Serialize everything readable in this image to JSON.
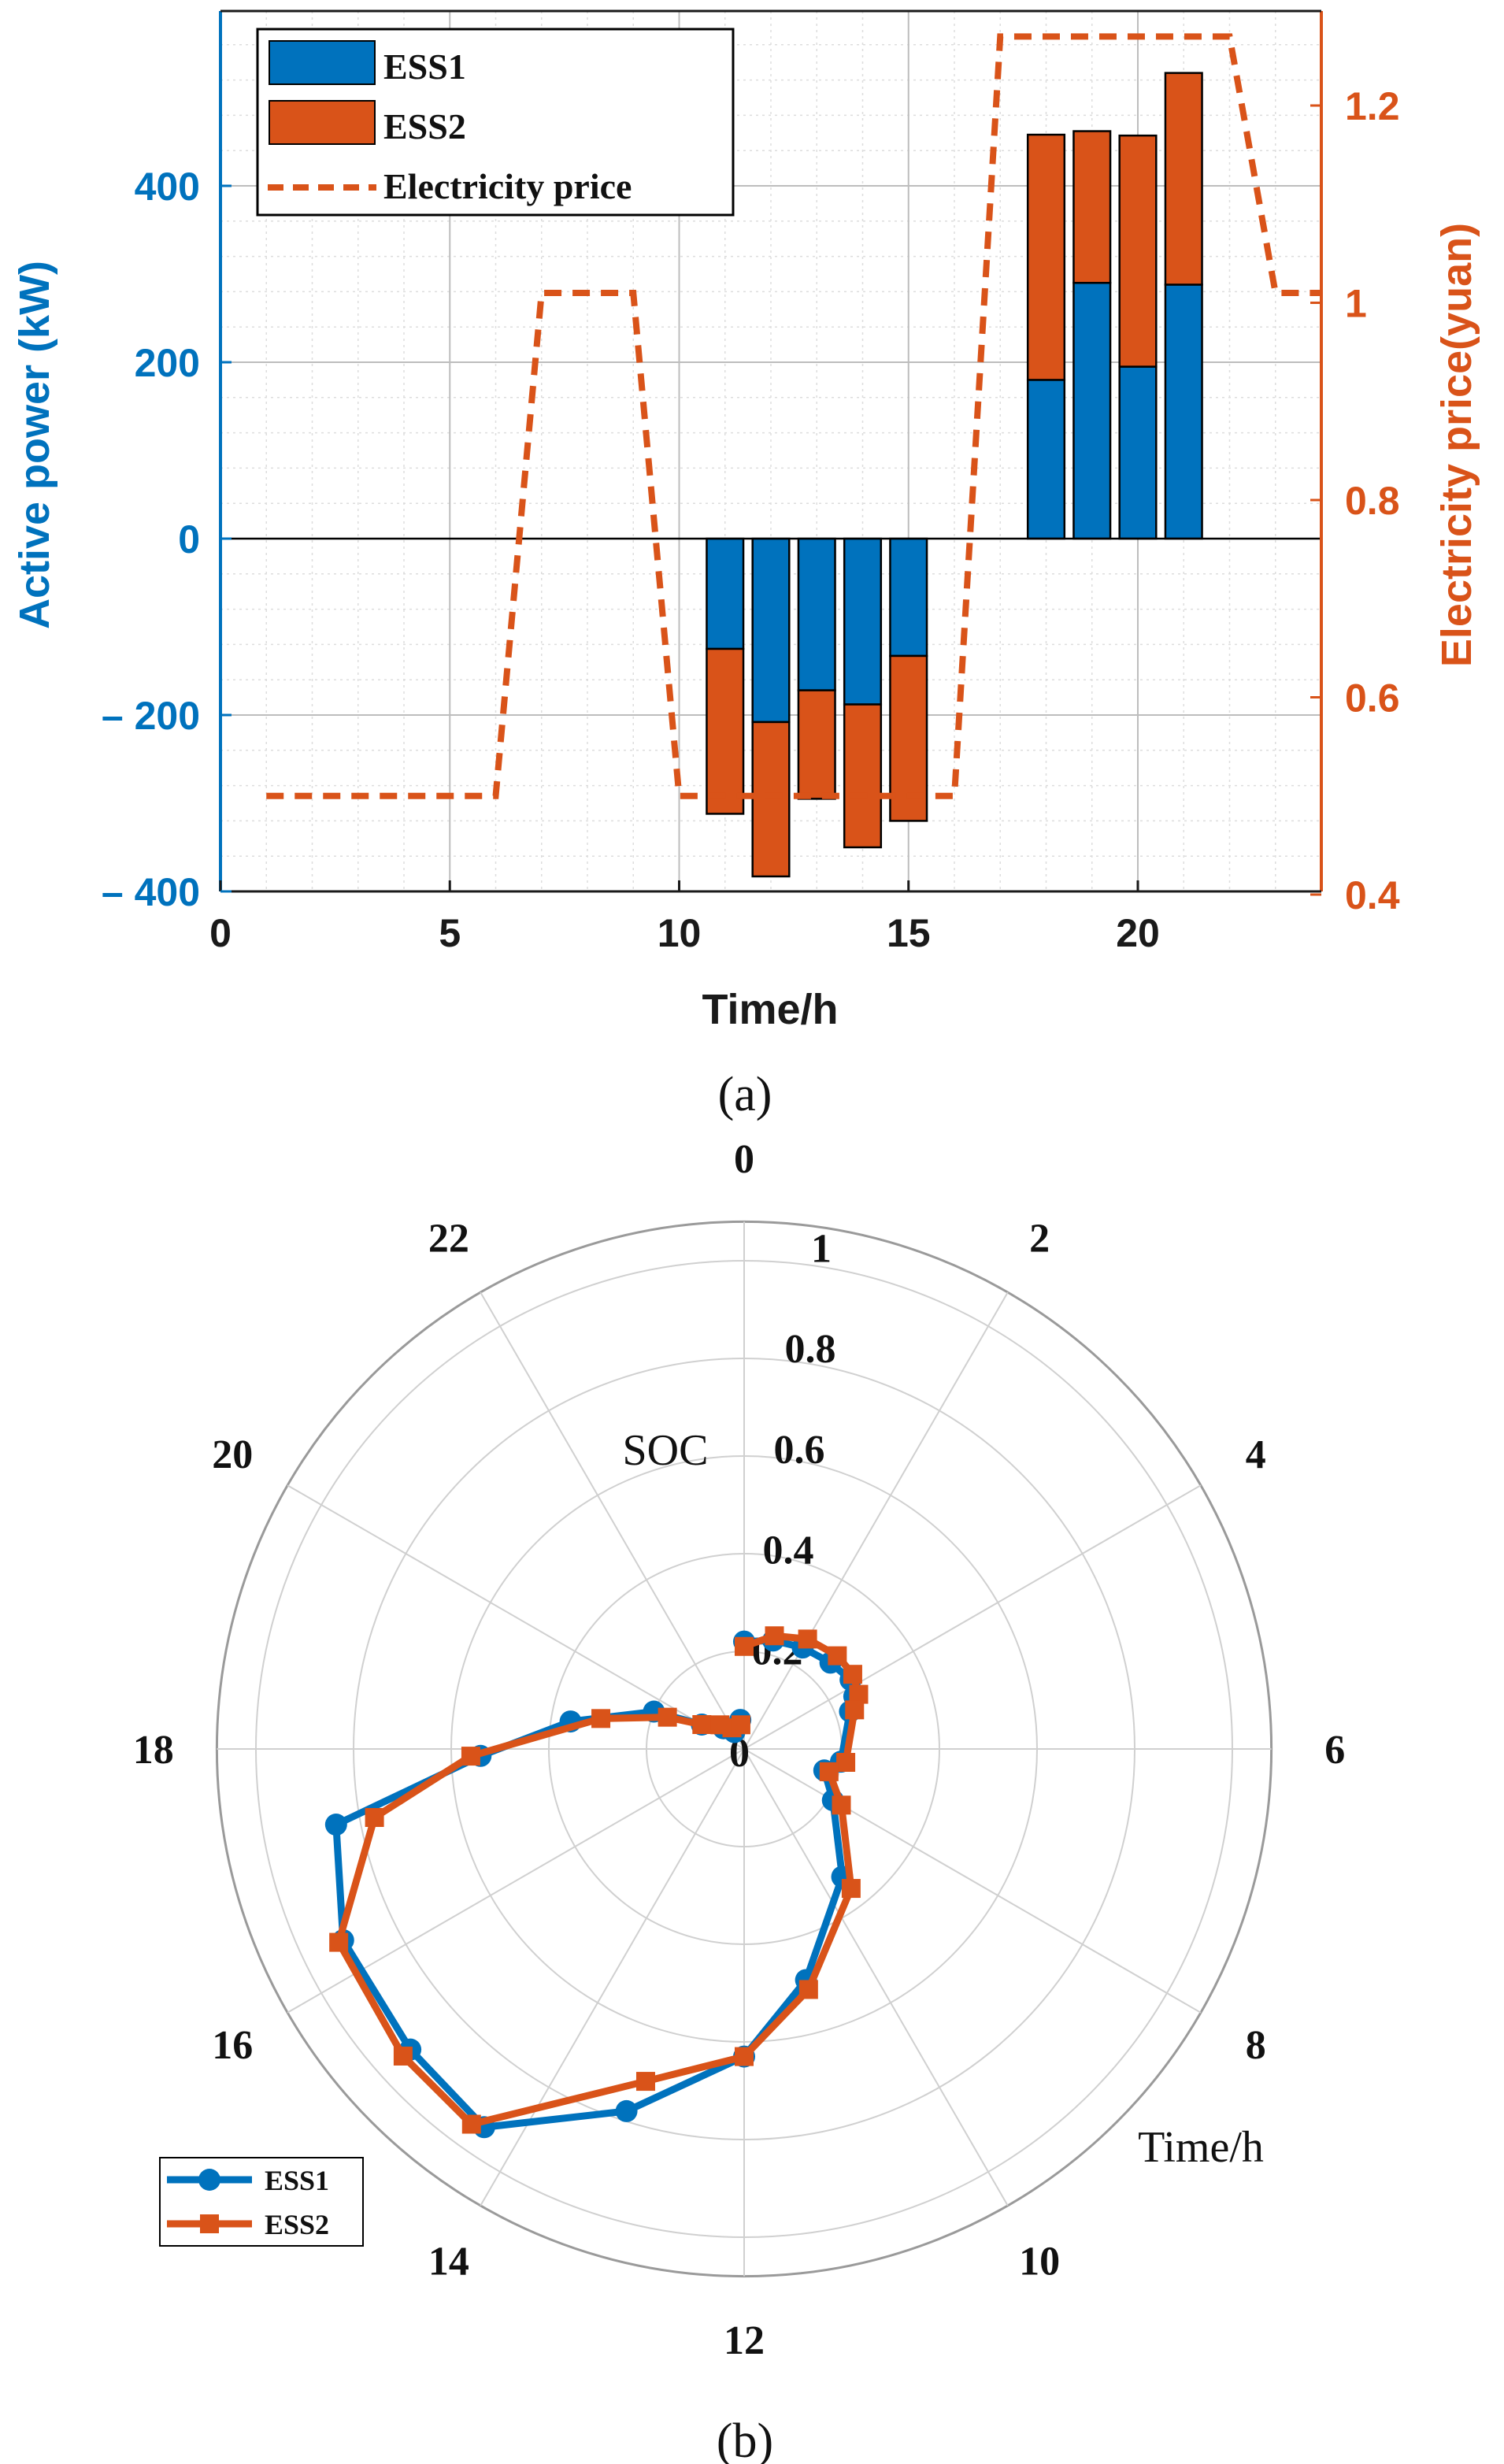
{
  "colors": {
    "blue": "#0072BD",
    "orange": "#D95319",
    "grid": "#cccccc",
    "axis": "#000000"
  },
  "panel_a": {
    "caption": "(a)"
  },
  "panel_b": {
    "caption": "(b)"
  },
  "chart_data": [
    {
      "type": "bar",
      "stacked": true,
      "title": "",
      "xlabel": "Time/h",
      "ylabel": "Active power (kW)",
      "y2label": "Electricity price(yuan)",
      "xlim": [
        0,
        24
      ],
      "ylim": [
        -400,
        590
      ],
      "y2lim": [
        0.4,
        1.3
      ],
      "xticks": [
        "0",
        "5",
        "10",
        "15",
        "20"
      ],
      "yticks": [
        "400",
        "200",
        "0",
        "– 200",
        "– 400"
      ],
      "y2ticks": [
        "1.2",
        "1",
        "0.8",
        "0.6",
        "0.4"
      ],
      "grid": true,
      "legend_position": "top-left",
      "legend": [
        "ESS1",
        "ESS2",
        "Electricity price"
      ],
      "categories": [
        11,
        12,
        13,
        14,
        15,
        18,
        19,
        20,
        21
      ],
      "series": [
        {
          "name": "ESS1",
          "values": [
            -125,
            -208,
            -172,
            -188,
            -133,
            180,
            290,
            195,
            288
          ]
        },
        {
          "name": "ESS2",
          "values": [
            -187,
            -175,
            -123,
            -162,
            -187,
            278,
            172,
            262,
            240
          ]
        }
      ],
      "price_line": {
        "name": "Electricity price",
        "x": [
          1,
          6,
          7,
          9,
          10,
          16,
          17,
          22,
          23,
          24
        ],
        "y": [
          0.5,
          0.5,
          1.01,
          1.01,
          0.5,
          0.5,
          1.27,
          1.27,
          1.01,
          1.01
        ]
      }
    },
    {
      "type": "polar-line",
      "title": "",
      "radial_label": "SOC",
      "angular_label": "Time/h",
      "angular_range_hours": [
        0,
        24
      ],
      "angular_ticks": [
        "0",
        "2",
        "4",
        "6",
        "8",
        "10",
        "12",
        "14",
        "16",
        "18",
        "20",
        "22"
      ],
      "radial_ticks": [
        "0",
        "0.2",
        "0.4",
        "0.6",
        "0.8",
        "1"
      ],
      "rlim": [
        0,
        1
      ],
      "legend_position": "bottom-left",
      "legend": [
        "ESS1",
        "ESS2"
      ],
      "series": [
        {
          "name": "ESS1",
          "marker": "circle",
          "points": [
            [
              0.0,
              0.22
            ],
            [
              1.0,
              0.23
            ],
            [
              2.0,
              0.24
            ],
            [
              3.0,
              0.25
            ],
            [
              3.8,
              0.26
            ],
            [
              4.3,
              0.25
            ],
            [
              4.7,
              0.23
            ],
            [
              6.5,
              0.2
            ],
            [
              7.0,
              0.17
            ],
            [
              8.0,
              0.21
            ],
            [
              9.5,
              0.33
            ],
            [
              11.0,
              0.49
            ],
            [
              12.0,
              0.63
            ],
            [
              13.2,
              0.78
            ],
            [
              14.3,
              0.94
            ],
            [
              15.2,
              0.92
            ],
            [
              16.3,
              0.91
            ],
            [
              17.3,
              0.85
            ],
            [
              17.9,
              0.54
            ],
            [
              18.6,
              0.36
            ],
            [
              19.5,
              0.2
            ],
            [
              20.0,
              0.1
            ],
            [
              21.0,
              0.06
            ],
            [
              22.0,
              0.04
            ],
            [
              23.5,
              0.06
            ]
          ]
        },
        {
          "name": "ESS2",
          "marker": "square",
          "points": [
            [
              0.0,
              0.21
            ],
            [
              1.0,
              0.24
            ],
            [
              2.0,
              0.26
            ],
            [
              3.0,
              0.27
            ],
            [
              3.7,
              0.27
            ],
            [
              4.3,
              0.26
            ],
            [
              4.7,
              0.24
            ],
            [
              6.5,
              0.21
            ],
            [
              7.0,
              0.18
            ],
            [
              8.0,
              0.23
            ],
            [
              9.5,
              0.36
            ],
            [
              11.0,
              0.51
            ],
            [
              12.0,
              0.63
            ],
            [
              13.1,
              0.71
            ],
            [
              14.4,
              0.95
            ],
            [
              15.2,
              0.94
            ],
            [
              16.3,
              0.92
            ],
            [
              17.3,
              0.77
            ],
            [
              17.9,
              0.56
            ],
            [
              18.8,
              0.3
            ],
            [
              19.5,
              0.17
            ],
            [
              20.0,
              0.1
            ],
            [
              21.0,
              0.07
            ],
            [
              22.0,
              0.05
            ],
            [
              23.5,
              0.05
            ]
          ]
        }
      ]
    }
  ]
}
